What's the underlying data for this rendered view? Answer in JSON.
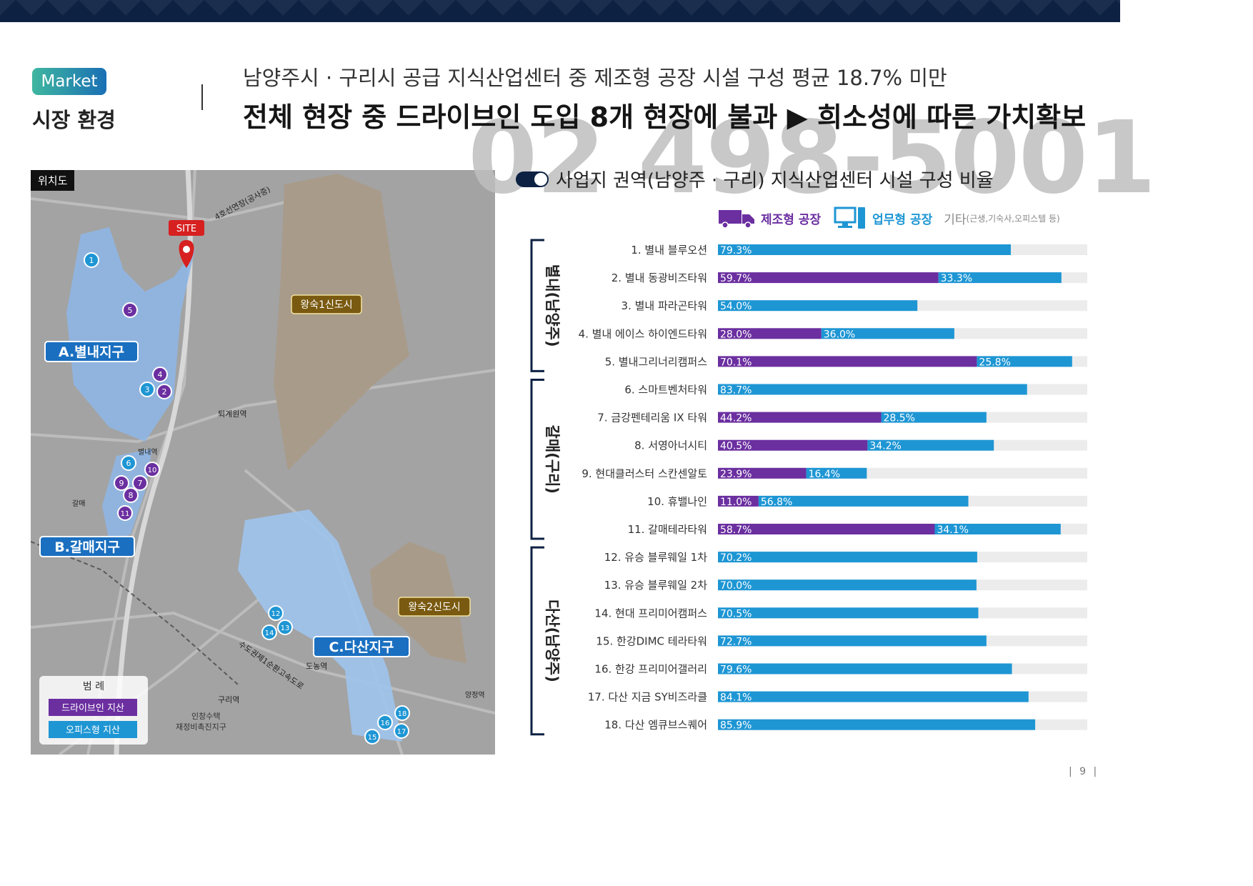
{
  "header": {
    "badge": "Market",
    "section_title": "시장 환경",
    "subtitle": "남양주시 · 구리시 공급 지식산업센터 중 제조형 공장 시설 구성 평균 18.7% 미만",
    "title": "전체 현장 중 드라이브인 도입 8개 현장에 불과 ▶ 희소성에 따른 가치확보",
    "watermark": "02 498-5001"
  },
  "map": {
    "tag": "위치도",
    "site_label": "SITE",
    "districts": [
      "A.별내지구",
      "B.갈매지구",
      "C.다산지구"
    ],
    "new_towns": [
      "왕숙1신도시",
      "왕숙2신도시"
    ],
    "places": [
      "퇴계원역",
      "별내역",
      "갈매",
      "도농역",
      "구리역",
      "양정역",
      "인창수택",
      "재정비촉진지구",
      "4호선연장(공사중)",
      "수도권제1순환고속도로"
    ],
    "markers": [
      {
        "n": "1",
        "type": "office"
      },
      {
        "n": "2",
        "type": "drive"
      },
      {
        "n": "3",
        "type": "office"
      },
      {
        "n": "4",
        "type": "drive"
      },
      {
        "n": "5",
        "type": "drive"
      },
      {
        "n": "6",
        "type": "office"
      },
      {
        "n": "7",
        "type": "drive"
      },
      {
        "n": "8",
        "type": "drive"
      },
      {
        "n": "9",
        "type": "drive"
      },
      {
        "n": "10",
        "type": "drive"
      },
      {
        "n": "11",
        "type": "drive"
      },
      {
        "n": "12",
        "type": "office"
      },
      {
        "n": "13",
        "type": "office"
      },
      {
        "n": "14",
        "type": "office"
      },
      {
        "n": "15",
        "type": "office"
      },
      {
        "n": "16",
        "type": "office"
      },
      {
        "n": "17",
        "type": "office"
      },
      {
        "n": "18",
        "type": "office"
      }
    ],
    "legend": {
      "title": "범 례",
      "drive": "드라이브인 지산",
      "office": "오피스형 지산"
    }
  },
  "chart_title": "사업지 권역(남양주 · 구리) 지식산업센터 시설 구성 비율",
  "legend": {
    "manufacturing": "제조형 공장",
    "office": "업무형 공장",
    "other": "기타",
    "other_note": "(근생,기숙사,오피스텔 등)"
  },
  "colors": {
    "manufacturing": "#6b2fa0",
    "office": "#1e96d4",
    "other": "#ececec",
    "navy": "#0d2143"
  },
  "chart_data": {
    "type": "bar",
    "orientation": "horizontal",
    "stacked": true,
    "xlim": [
      0,
      100
    ],
    "groups": [
      {
        "name": "별내(남양주)",
        "from": 0,
        "to": 4
      },
      {
        "name": "갈매(구리)",
        "from": 5,
        "to": 10
      },
      {
        "name": "다산(남양주)",
        "from": 11,
        "to": 17
      }
    ],
    "categories": [
      "1. 별내 블루오션",
      "2. 별내 동광비즈타워",
      "3. 별내 파라곤타워",
      "4. 별내 에이스 하이엔드타워",
      "5. 별내그리너리캠퍼스",
      "6. 스마트벤처타워",
      "7. 금강펜테리움 IX 타워",
      "8. 서영아너시티",
      "9. 현대클러스터 스칸센알토",
      "10. 휴밸나인",
      "11. 갈매테라타워",
      "12. 유승 블루웨일 1차",
      "13. 유승 블루웨일 2차",
      "14. 현대 프리미어캠퍼스",
      "15. 한강DIMC 테라타워",
      "16. 한강 프리미어갤러리",
      "17. 다산 지금 SY비즈라클",
      "18. 다산 엠큐브스퀘어"
    ],
    "series": [
      {
        "name": "제조형 공장",
        "values": [
          null,
          59.7,
          null,
          28.0,
          70.1,
          null,
          44.2,
          40.5,
          23.9,
          11.0,
          58.7,
          null,
          null,
          null,
          null,
          null,
          null,
          null
        ]
      },
      {
        "name": "업무형 공장",
        "values": [
          79.3,
          33.3,
          54.0,
          36.0,
          25.8,
          83.7,
          28.5,
          34.2,
          16.4,
          56.8,
          34.1,
          70.2,
          70.0,
          70.5,
          72.7,
          79.6,
          84.1,
          85.9
        ]
      }
    ],
    "value_labels": [
      [
        "",
        "79.3%"
      ],
      [
        "59.7%",
        "33.3%"
      ],
      [
        "",
        "54.0%"
      ],
      [
        "28.0%",
        "36.0%"
      ],
      [
        "70.1%",
        "25.8%"
      ],
      [
        "",
        "83.7%"
      ],
      [
        "44.2%",
        "28.5%"
      ],
      [
        "40.5%",
        "34.2%"
      ],
      [
        "23.9%",
        "16.4%"
      ],
      [
        "11.0%",
        "56.8%"
      ],
      [
        "58.7%",
        "34.1%"
      ],
      [
        "",
        "70.2%"
      ],
      [
        "",
        "70.0%"
      ],
      [
        "",
        "70.5%"
      ],
      [
        "",
        "72.7%"
      ],
      [
        "",
        "79.6%"
      ],
      [
        "",
        "84.1%"
      ],
      [
        "",
        "85.9%"
      ]
    ]
  },
  "page_number": "| 9 |"
}
